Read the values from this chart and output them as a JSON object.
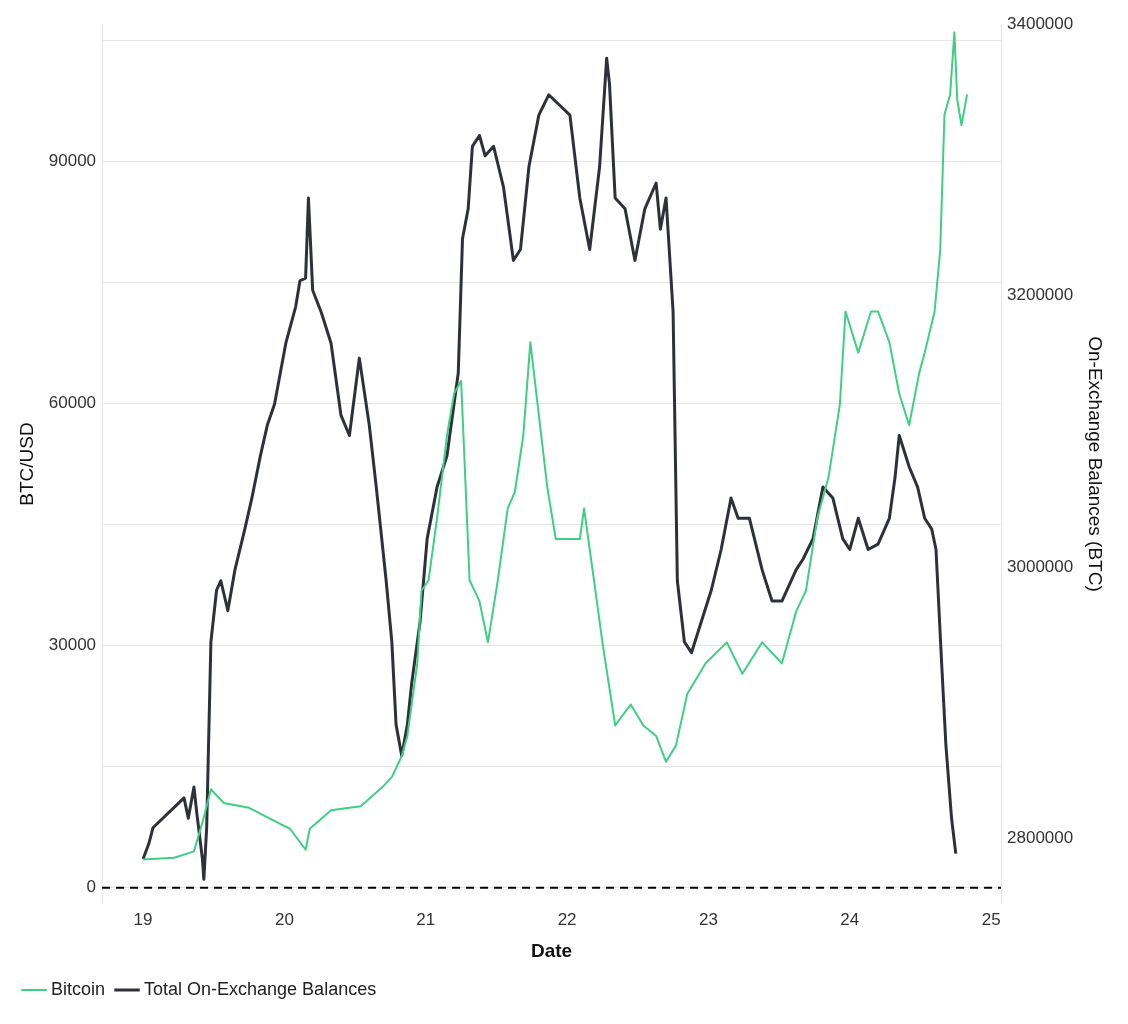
{
  "chart_data": {
    "type": "line",
    "xlabel": "Date",
    "ylabel": "BTC/USD",
    "y2label": "On-Exchange Balances (BTC)",
    "xlim": [
      18.71,
      25.07
    ],
    "xticks": [
      19,
      20,
      21,
      22,
      23,
      24,
      25
    ],
    "ylim": [
      -2000,
      107000
    ],
    "yticks": [
      0,
      {
        "value": 15000,
        "label": null
      },
      30000,
      {
        "value": 45000,
        "label": null
      },
      60000,
      {
        "value": 75000,
        "label": null
      },
      90000,
      {
        "value": 105000,
        "label": null
      }
    ],
    "y2lim": [
      2752000,
      3400000
    ],
    "y2ticks": [
      2800000,
      3000000,
      3200000,
      3400000
    ],
    "grid": "y",
    "legend": "bottom",
    "marker": "none",
    "line_style": "solid",
    "ref_lines": [
      {
        "axis": "y",
        "value": 0,
        "color": "#000000",
        "line_style": "dashed"
      }
    ],
    "series": [
      {
        "name": "Bitcoin",
        "color": "#3ecf85",
        "axis": "y",
        "x": [
          19.0,
          19.22,
          19.36,
          19.43,
          19.48,
          19.57,
          19.75,
          19.97,
          20.04,
          20.15,
          20.18,
          20.33,
          20.54,
          20.69,
          20.76,
          20.83,
          20.87,
          20.94,
          20.97,
          21.02,
          21.08,
          21.15,
          21.2,
          21.25,
          21.27,
          21.31,
          21.38,
          21.44,
          21.51,
          21.58,
          21.63,
          21.69,
          21.74,
          21.8,
          21.86,
          21.92,
          22.02,
          22.09,
          22.12,
          22.18,
          22.25,
          22.34,
          22.45,
          22.54,
          22.63,
          22.7,
          22.77,
          22.85,
          22.98,
          23.13,
          23.24,
          23.38,
          23.52,
          23.62,
          23.69,
          23.77,
          23.85,
          23.93,
          23.97,
          24.06,
          24.15,
          24.2,
          24.28,
          24.35,
          24.42,
          24.49,
          24.53,
          24.6,
          24.64,
          24.67,
          24.71,
          24.74,
          24.76,
          24.79,
          24.83
        ],
        "values": [
          3500,
          3700,
          4500,
          8700,
          12200,
          10500,
          9900,
          7900,
          7300,
          4700,
          7300,
          9600,
          10100,
          12400,
          13700,
          16300,
          18800,
          27800,
          36800,
          38100,
          45800,
          56000,
          61200,
          62800,
          54700,
          38100,
          35500,
          30400,
          38100,
          47000,
          49000,
          56000,
          67600,
          58600,
          49600,
          43200,
          43200,
          43200,
          47000,
          39400,
          30400,
          20100,
          22700,
          20100,
          18800,
          15600,
          17600,
          24000,
          27800,
          30400,
          26500,
          30400,
          27800,
          34200,
          36800,
          45800,
          50900,
          59900,
          71400,
          66300,
          71400,
          71400,
          67600,
          61200,
          57300,
          63700,
          66300,
          71400,
          79100,
          95800,
          98300,
          106000,
          97700,
          94500,
          98300
        ]
      },
      {
        "name": "Total On-Exchange Balances",
        "color": "#2e3138",
        "axis": "y2",
        "x": [
          19.0,
          19.04,
          19.07,
          19.14,
          19.22,
          19.29,
          19.32,
          19.36,
          19.38,
          19.42,
          19.43,
          19.45,
          19.48,
          19.52,
          19.55,
          19.6,
          19.65,
          19.72,
          19.77,
          19.83,
          19.88,
          19.93,
          20.01,
          20.08,
          20.11,
          20.15,
          20.17,
          20.2,
          20.26,
          20.33,
          20.4,
          20.46,
          20.53,
          20.6,
          20.65,
          20.72,
          20.76,
          20.79,
          20.83,
          20.87,
          20.9,
          20.96,
          21.01,
          21.08,
          21.15,
          21.23,
          21.26,
          21.3,
          21.33,
          21.38,
          21.42,
          21.48,
          21.55,
          21.62,
          21.67,
          21.73,
          21.8,
          21.87,
          21.94,
          22.02,
          22.09,
          22.16,
          22.23,
          22.28,
          22.3,
          22.34,
          22.41,
          22.48,
          22.55,
          22.63,
          22.66,
          22.7,
          22.75,
          22.78,
          22.83,
          22.88,
          22.95,
          23.02,
          23.09,
          23.16,
          23.21,
          23.29,
          23.38,
          23.45,
          23.52,
          23.62,
          23.67,
          23.74,
          23.81,
          23.88,
          23.95,
          24.0,
          24.06,
          24.13,
          24.2,
          24.28,
          24.32,
          24.35,
          24.42,
          24.48,
          24.53,
          24.58,
          24.61,
          24.65,
          24.68,
          24.72,
          24.75
        ],
        "values": [
          2785000,
          2796000,
          2808000,
          2815000,
          2823000,
          2830000,
          2815000,
          2838000,
          2819000,
          2785000,
          2770000,
          2808000,
          2945000,
          2983000,
          2990000,
          2968000,
          2998000,
          3028000,
          3051000,
          3082000,
          3105000,
          3120000,
          3165000,
          3192000,
          3211000,
          3213000,
          3272000,
          3204000,
          3188000,
          3165000,
          3112000,
          3097000,
          3154000,
          3105000,
          3059000,
          2990000,
          2945000,
          2884000,
          2861000,
          2884000,
          2914000,
          2960000,
          3021000,
          3059000,
          3082000,
          3143000,
          3242000,
          3264000,
          3310000,
          3318000,
          3303000,
          3310000,
          3280000,
          3226000,
          3234000,
          3295000,
          3333000,
          3348000,
          3341000,
          3333000,
          3272000,
          3234000,
          3295000,
          3375000,
          3356000,
          3272000,
          3264000,
          3226000,
          3264000,
          3283000,
          3249000,
          3272000,
          3188000,
          2990000,
          2945000,
          2937000,
          2960000,
          2983000,
          3013000,
          3051000,
          3036000,
          3036000,
          2998000,
          2975000,
          2975000,
          2998000,
          3006000,
          3021000,
          3059000,
          3051000,
          3021000,
          3013000,
          3036000,
          3013000,
          3017000,
          3036000,
          3066000,
          3097000,
          3074000,
          3059000,
          3036000,
          3028000,
          3013000,
          2929000,
          2869000,
          2815000,
          2789000
        ]
      }
    ]
  }
}
